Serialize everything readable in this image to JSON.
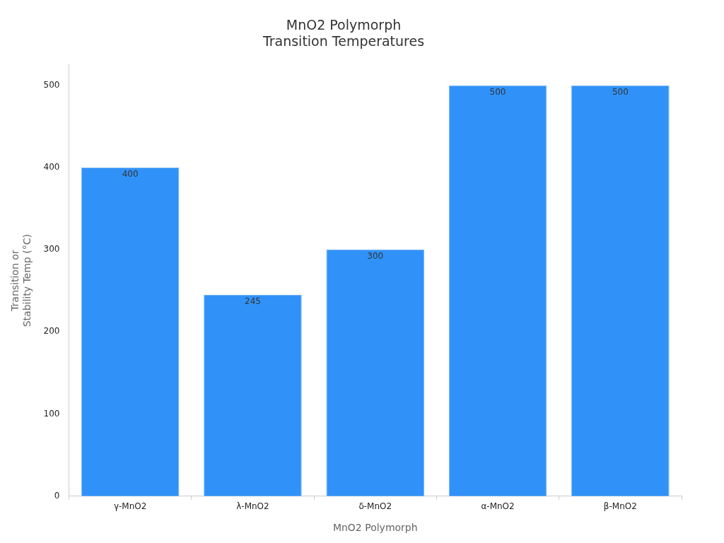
{
  "chart_data": {
    "type": "bar",
    "title": "MnO2 Polymorph\nTransition Temperatures",
    "xlabel": "MnO2 Polymorph",
    "ylabel": "Transition or\nStability Temp (°C)",
    "categories": [
      "γ-MnO2",
      "λ-MnO2",
      "δ-MnO2",
      "α-MnO2",
      "β-MnO2"
    ],
    "values": [
      400,
      245,
      300,
      500,
      500
    ],
    "color": "#3092f8",
    "ylim": [
      0,
      525
    ],
    "yticks": [
      0,
      100,
      200,
      300,
      400,
      500
    ],
    "grid": false,
    "legend": false,
    "data_labels": true
  }
}
